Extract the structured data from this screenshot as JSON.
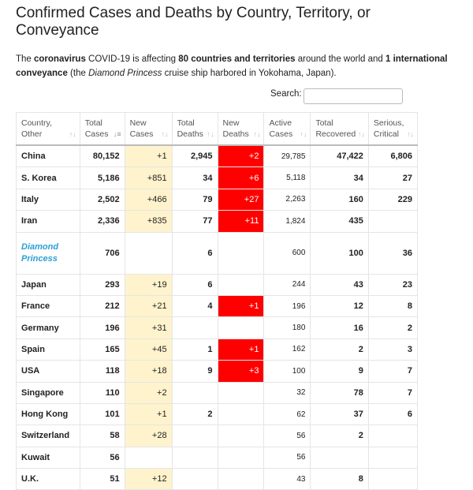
{
  "title": "Confirmed Cases and Deaths by Country, Territory, or Conveyance",
  "intro": {
    "p1": "The ",
    "b1": "coronavirus",
    "p2": " COVID-19 is affecting ",
    "b2": "80 countries and territories",
    "p3": " around the world and ",
    "b3": "1 international conveyance",
    "p4": " (the ",
    "i1": "Diamond Princess",
    "p5": " cruise ship harbored in Yokohama, Japan)."
  },
  "search": {
    "label": "Search:",
    "value": ""
  },
  "headers": [
    [
      "Country,",
      "Other"
    ],
    [
      "Total",
      "Cases"
    ],
    [
      "New",
      "Cases"
    ],
    [
      "Total",
      "Deaths"
    ],
    [
      "New",
      "Deaths"
    ],
    [
      "Active",
      "Cases"
    ],
    [
      "Total",
      "Recovered"
    ],
    [
      "Serious,",
      "Critical"
    ]
  ],
  "rows": [
    {
      "country": "China",
      "total_cases": "80,152",
      "new_cases": "+1",
      "total_deaths": "2,945",
      "new_deaths": "+2",
      "active": "29,785",
      "recovered": "47,422",
      "critical": "6,806"
    },
    {
      "country": "S. Korea",
      "total_cases": "5,186",
      "new_cases": "+851",
      "total_deaths": "34",
      "new_deaths": "+6",
      "active": "5,118",
      "recovered": "34",
      "critical": "27"
    },
    {
      "country": "Italy",
      "total_cases": "2,502",
      "new_cases": "+466",
      "total_deaths": "79",
      "new_deaths": "+27",
      "active": "2,263",
      "recovered": "160",
      "critical": "229"
    },
    {
      "country": "Iran",
      "total_cases": "2,336",
      "new_cases": "+835",
      "total_deaths": "77",
      "new_deaths": "+11",
      "active": "1,824",
      "recovered": "435",
      "critical": ""
    },
    {
      "country": "Diamond Princess",
      "total_cases": "706",
      "new_cases": "",
      "total_deaths": "6",
      "new_deaths": "",
      "active": "600",
      "recovered": "100",
      "critical": "36",
      "special": true
    },
    {
      "country": "Japan",
      "total_cases": "293",
      "new_cases": "+19",
      "total_deaths": "6",
      "new_deaths": "",
      "active": "244",
      "recovered": "43",
      "critical": "23"
    },
    {
      "country": "France",
      "total_cases": "212",
      "new_cases": "+21",
      "total_deaths": "4",
      "new_deaths": "+1",
      "active": "196",
      "recovered": "12",
      "critical": "8"
    },
    {
      "country": "Germany",
      "total_cases": "196",
      "new_cases": "+31",
      "total_deaths": "",
      "new_deaths": "",
      "active": "180",
      "recovered": "16",
      "critical": "2"
    },
    {
      "country": "Spain",
      "total_cases": "165",
      "new_cases": "+45",
      "total_deaths": "1",
      "new_deaths": "+1",
      "active": "162",
      "recovered": "2",
      "critical": "3"
    },
    {
      "country": "USA",
      "total_cases": "118",
      "new_cases": "+18",
      "total_deaths": "9",
      "new_deaths": "+3",
      "active": "100",
      "recovered": "9",
      "critical": "7"
    },
    {
      "country": "Singapore",
      "total_cases": "110",
      "new_cases": "+2",
      "total_deaths": "",
      "new_deaths": "",
      "active": "32",
      "recovered": "78",
      "critical": "7"
    },
    {
      "country": "Hong Kong",
      "total_cases": "101",
      "new_cases": "+1",
      "total_deaths": "2",
      "new_deaths": "",
      "active": "62",
      "recovered": "37",
      "critical": "6"
    },
    {
      "country": "Switzerland",
      "total_cases": "58",
      "new_cases": "+28",
      "total_deaths": "",
      "new_deaths": "",
      "active": "56",
      "recovered": "2",
      "critical": ""
    },
    {
      "country": "Kuwait",
      "total_cases": "56",
      "new_cases": "",
      "total_deaths": "",
      "new_deaths": "",
      "active": "56",
      "recovered": "",
      "critical": ""
    },
    {
      "country": "U.K.",
      "total_cases": "51",
      "new_cases": "+12",
      "total_deaths": "",
      "new_deaths": "",
      "active": "43",
      "recovered": "8",
      "critical": ""
    }
  ],
  "colors": {
    "new_cases_bg": "#fff3cd",
    "new_deaths_bg": "#ff0000",
    "special_link": "#2a9fd6"
  }
}
